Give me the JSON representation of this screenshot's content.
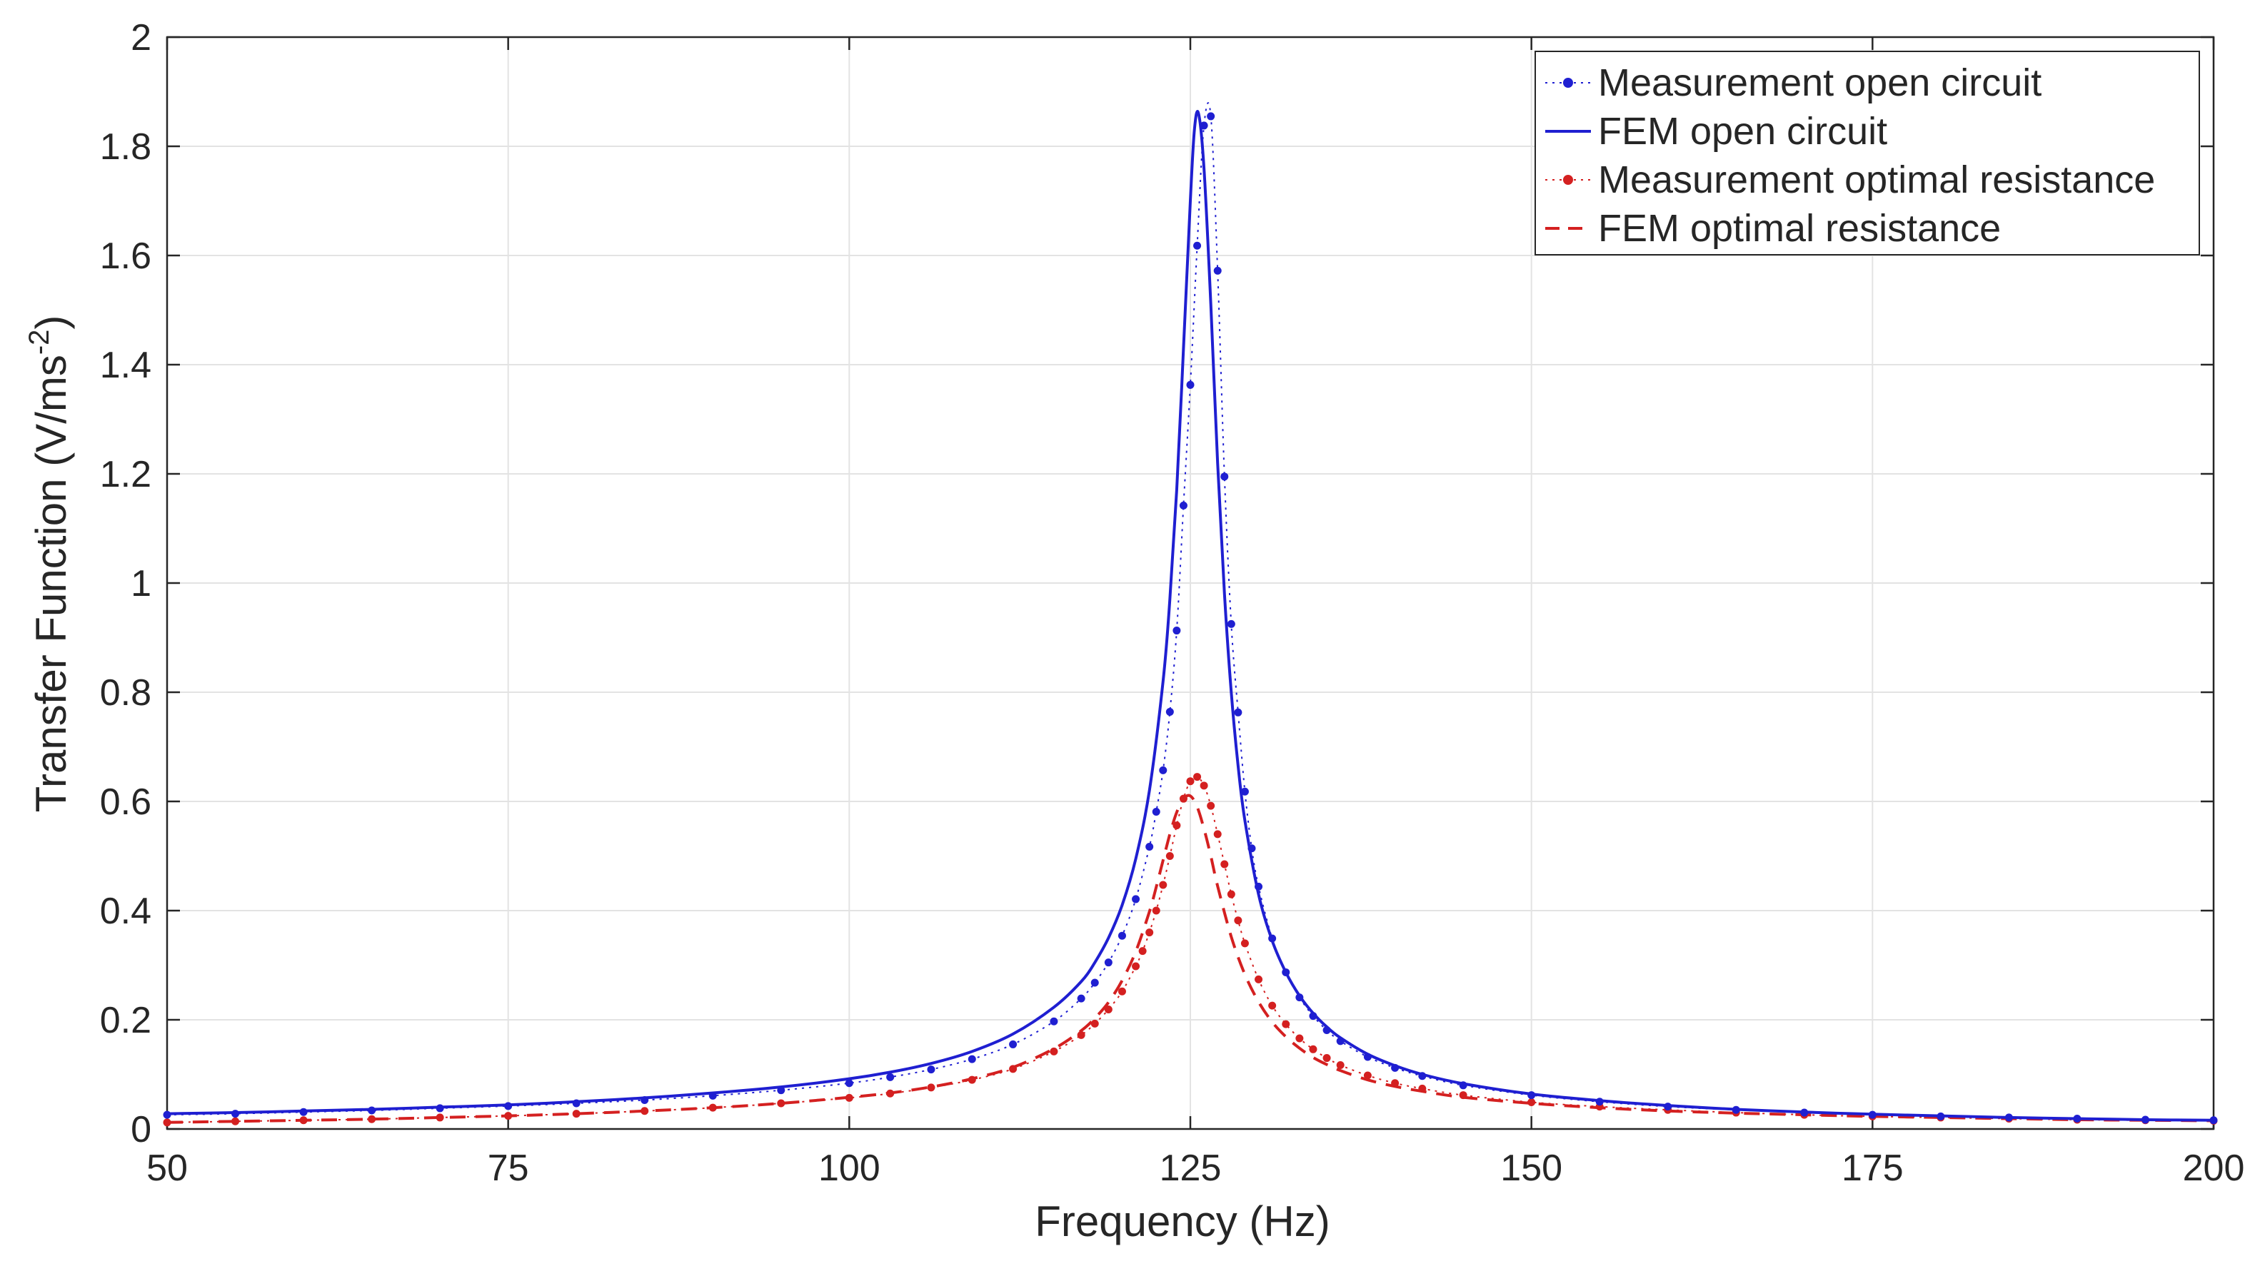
{
  "chart_data": {
    "type": "line",
    "title": "",
    "xlabel": "Frequency (Hz)",
    "ylabel": "Transfer Function (V/ms",
    "ylabel_superscript": "-2",
    "ylabel_close": ")",
    "xlim": [
      50,
      200
    ],
    "ylim": [
      0,
      2
    ],
    "xticks": [
      50,
      75,
      100,
      125,
      150,
      175,
      200
    ],
    "xtick_labels": [
      "50",
      "75",
      "100",
      "125",
      "150",
      "175",
      "200"
    ],
    "yticks": [
      0,
      0.2,
      0.4,
      0.6,
      0.8,
      1,
      1.2,
      1.4,
      1.6,
      1.8,
      2
    ],
    "ytick_labels": [
      "0",
      "0.2",
      "0.4",
      "0.6",
      "0.8",
      "1",
      "1.2",
      "1.4",
      "1.6",
      "1.8",
      "2"
    ],
    "grid": true,
    "legend_position": "top-right",
    "series": [
      {
        "name": "Measurement open circuit",
        "color": "#1f1fd1",
        "style": "dotted-markers",
        "x": [
          50,
          55,
          60,
          65,
          70,
          75,
          80,
          85,
          90,
          95,
          100,
          103,
          106,
          109,
          112,
          115,
          117,
          118,
          119,
          120,
          121,
          122,
          122.5,
          123,
          123.5,
          124,
          124.5,
          125,
          125.5,
          126,
          126.5,
          127,
          127.5,
          128,
          128.5,
          129,
          129.5,
          130,
          131,
          132,
          133,
          134,
          135,
          136,
          138,
          140,
          142,
          145,
          150,
          155,
          160,
          165,
          170,
          175,
          180,
          185,
          190,
          195,
          200
        ],
        "y": [
          0.026,
          0.028,
          0.031,
          0.034,
          0.038,
          0.042,
          0.047,
          0.053,
          0.061,
          0.071,
          0.084,
          0.095,
          0.109,
          0.128,
          0.155,
          0.197,
          0.239,
          0.268,
          0.305,
          0.354,
          0.421,
          0.517,
          0.581,
          0.657,
          0.764,
          0.913,
          1.142,
          1.363,
          1.618,
          1.838,
          1.855,
          1.572,
          1.195,
          0.925,
          0.763,
          0.618,
          0.514,
          0.444,
          0.349,
          0.287,
          0.241,
          0.207,
          0.181,
          0.161,
          0.132,
          0.112,
          0.097,
          0.08,
          0.062,
          0.05,
          0.041,
          0.035,
          0.03,
          0.026,
          0.023,
          0.021,
          0.019,
          0.017,
          0.016
        ]
      },
      {
        "name": "FEM open circuit",
        "color": "#1f1fd1",
        "style": "solid",
        "x": [
          50,
          55,
          60,
          65,
          70,
          75,
          80,
          85,
          90,
          95,
          100,
          103,
          106,
          109,
          112,
          115,
          117,
          118,
          119,
          120,
          121,
          122,
          123,
          123.5,
          124,
          124.5,
          125,
          125.3,
          125.6,
          126,
          126.5,
          127,
          127.5,
          128,
          128.5,
          129,
          130,
          131,
          132,
          133,
          134,
          135,
          136,
          138,
          140,
          142,
          145,
          150,
          155,
          160,
          165,
          170,
          175,
          180,
          185,
          190,
          195,
          200
        ],
        "y": [
          0.028,
          0.03,
          0.033,
          0.036,
          0.04,
          0.044,
          0.05,
          0.057,
          0.066,
          0.077,
          0.092,
          0.104,
          0.12,
          0.142,
          0.174,
          0.223,
          0.27,
          0.305,
          0.35,
          0.41,
          0.495,
          0.62,
          0.82,
          0.97,
          1.17,
          1.43,
          1.7,
          1.83,
          1.86,
          1.76,
          1.51,
          1.22,
          0.98,
          0.8,
          0.665,
          0.565,
          0.43,
          0.345,
          0.287,
          0.244,
          0.212,
          0.187,
          0.167,
          0.137,
          0.116,
          0.1,
          0.083,
          0.064,
          0.052,
          0.043,
          0.036,
          0.031,
          0.027,
          0.024,
          0.021,
          0.019,
          0.017,
          0.016
        ]
      },
      {
        "name": "Measurement optimal resistance",
        "color": "#d42020",
        "style": "dotted-markers",
        "x": [
          50,
          55,
          60,
          65,
          70,
          75,
          80,
          85,
          90,
          95,
          100,
          103,
          106,
          109,
          112,
          115,
          117,
          118,
          119,
          120,
          121,
          121.5,
          122,
          122.5,
          123,
          123.5,
          124,
          124.5,
          125,
          125.5,
          126,
          126.5,
          127,
          127.5,
          128,
          128.5,
          129,
          130,
          131,
          132,
          133,
          134,
          135,
          136,
          138,
          140,
          142,
          145,
          150,
          155,
          160,
          165,
          170,
          175,
          180,
          185,
          190,
          195,
          200
        ],
        "y": [
          0.012,
          0.014,
          0.016,
          0.018,
          0.021,
          0.024,
          0.028,
          0.033,
          0.039,
          0.047,
          0.057,
          0.065,
          0.076,
          0.09,
          0.11,
          0.142,
          0.172,
          0.193,
          0.219,
          0.252,
          0.298,
          0.326,
          0.36,
          0.4,
          0.447,
          0.5,
          0.556,
          0.605,
          0.637,
          0.645,
          0.629,
          0.592,
          0.54,
          0.485,
          0.43,
          0.382,
          0.34,
          0.274,
          0.226,
          0.192,
          0.166,
          0.146,
          0.13,
          0.117,
          0.098,
          0.084,
          0.074,
          0.062,
          0.049,
          0.041,
          0.035,
          0.03,
          0.026,
          0.023,
          0.021,
          0.019,
          0.017,
          0.016,
          0.015
        ]
      },
      {
        "name": "FEM optimal resistance",
        "color": "#d42020",
        "style": "dashed",
        "x": [
          50,
          55,
          60,
          65,
          70,
          75,
          80,
          85,
          90,
          95,
          100,
          103,
          106,
          109,
          112,
          115,
          117,
          118,
          119,
          120,
          121,
          122,
          122.5,
          123,
          123.5,
          124,
          124.5,
          125,
          125.5,
          126,
          126.5,
          127,
          128,
          129,
          130,
          131,
          132,
          133,
          134,
          135,
          136,
          138,
          140,
          142,
          145,
          150,
          155,
          160,
          165,
          170,
          175,
          180,
          185,
          190,
          195,
          200
        ],
        "y": [
          0.012,
          0.014,
          0.016,
          0.018,
          0.021,
          0.024,
          0.028,
          0.033,
          0.039,
          0.047,
          0.058,
          0.066,
          0.077,
          0.092,
          0.113,
          0.147,
          0.18,
          0.203,
          0.232,
          0.272,
          0.325,
          0.398,
          0.443,
          0.492,
          0.54,
          0.58,
          0.605,
          0.61,
          0.59,
          0.55,
          0.5,
          0.445,
          0.352,
          0.283,
          0.233,
          0.196,
          0.169,
          0.148,
          0.131,
          0.118,
          0.107,
          0.09,
          0.078,
          0.069,
          0.058,
          0.047,
          0.039,
          0.033,
          0.029,
          0.026,
          0.023,
          0.021,
          0.019,
          0.017,
          0.016,
          0.015
        ]
      }
    ]
  }
}
